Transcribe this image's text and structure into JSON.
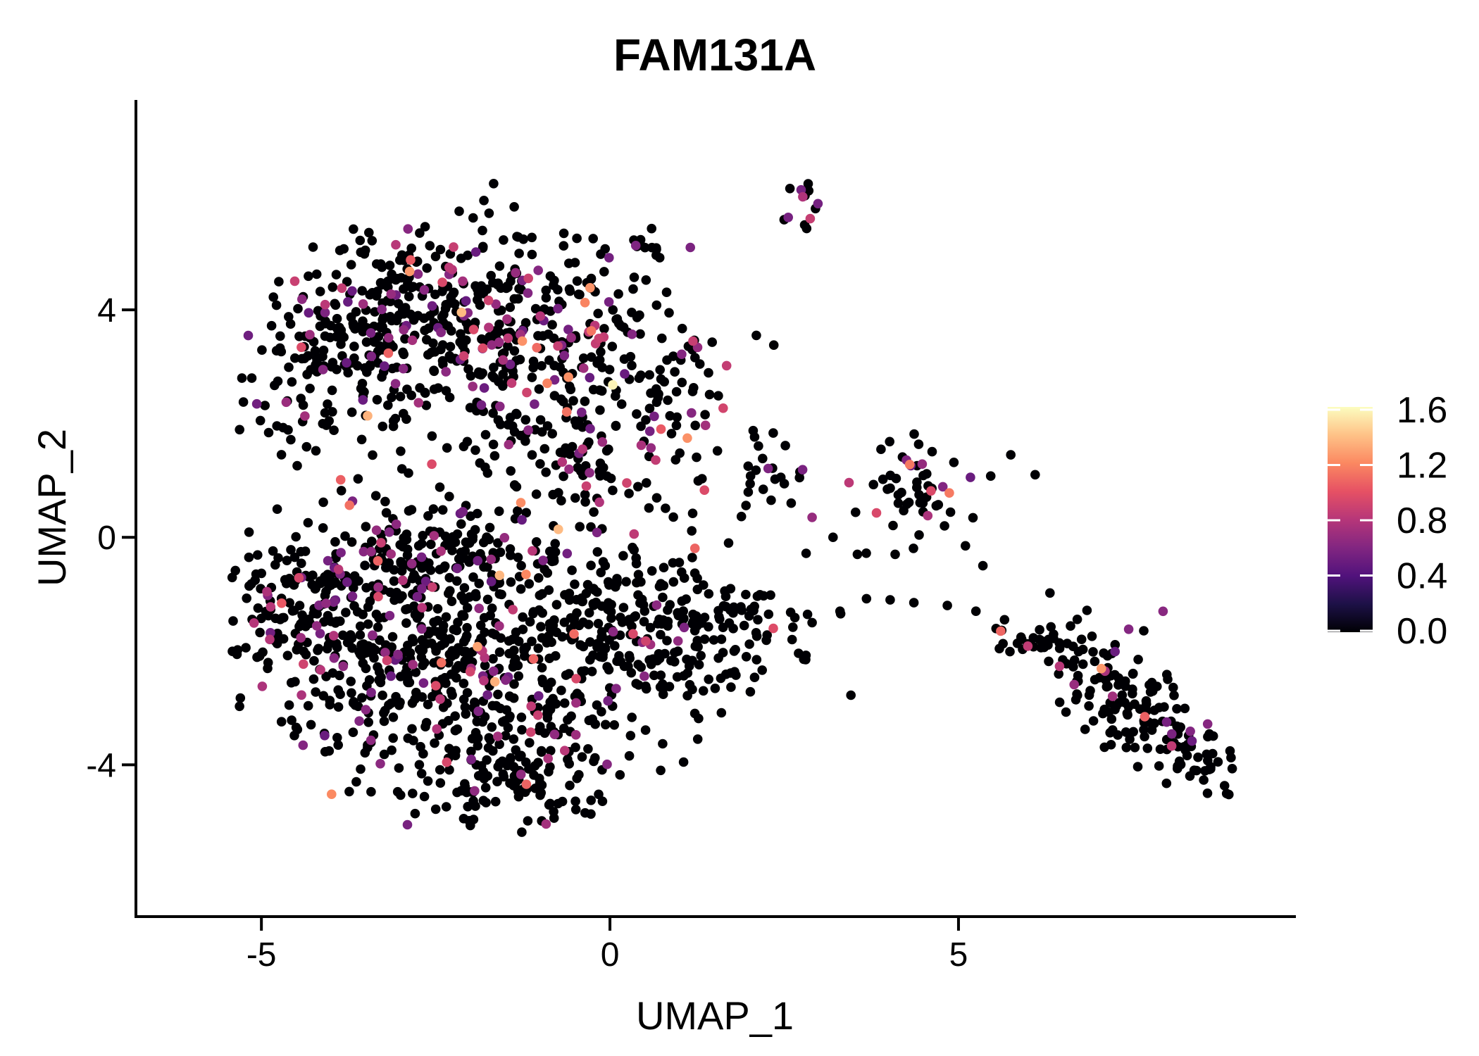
{
  "figure": {
    "title": "FAM131A",
    "x_axis": {
      "label": "UMAP_1",
      "ticks": [
        {
          "value": -5,
          "label": "-5"
        },
        {
          "value": 0,
          "label": "0"
        },
        {
          "value": 5,
          "label": "5"
        }
      ]
    },
    "y_axis": {
      "label": "UMAP_2",
      "ticks": [
        {
          "value": 4,
          "label": "4"
        },
        {
          "value": 0,
          "label": "0"
        },
        {
          "value": -4,
          "label": "-4"
        }
      ]
    },
    "legend": {
      "tick_labels": [
        "1.6",
        "1.2",
        "0.8",
        "0.4",
        "0.0"
      ],
      "tick_values": [
        1.6,
        1.2,
        0.8,
        0.4,
        0.0
      ],
      "scale_max": 1.6,
      "colormap": "magma"
    }
  },
  "chart_data": {
    "type": "scatter",
    "title": "FAM131A",
    "xlabel": "UMAP_1",
    "ylabel": "UMAP_2",
    "xlim": [
      -6.8,
      9.84
    ],
    "ylim": [
      -6.67,
      7.69
    ],
    "x_ticks": [
      -5,
      0,
      5
    ],
    "y_ticks": [
      -4,
      0,
      4
    ],
    "grid": false,
    "legend_position": "right",
    "point_radius_px": 6.8,
    "seed": 1337,
    "color_scale": {
      "min": 0.0,
      "max": 1.65,
      "palette": "magma",
      "stops": [
        {
          "t": 0.0,
          "c": "#000004"
        },
        {
          "t": 0.125,
          "c": "#1D1147"
        },
        {
          "t": 0.25,
          "c": "#51127C"
        },
        {
          "t": 0.375,
          "c": "#822681"
        },
        {
          "t": 0.5,
          "c": "#B63679"
        },
        {
          "t": 0.625,
          "c": "#E65164"
        },
        {
          "t": 0.75,
          "c": "#FB8861"
        },
        {
          "t": 0.875,
          "c": "#FEC287"
        },
        {
          "t": 1.0,
          "c": "#FCFDBF"
        }
      ]
    },
    "value_distribution": {
      "bins": [
        {
          "p": 0.55,
          "min": 0.5,
          "max": 0.75
        },
        {
          "p": 0.3,
          "min": 0.75,
          "max": 1.0
        },
        {
          "p": 0.115,
          "min": 1.05,
          "max": 1.3
        },
        {
          "p": 0.03,
          "min": 1.3,
          "max": 1.5
        },
        {
          "p": 0.005,
          "min": 1.55,
          "max": 1.65
        }
      ]
    },
    "clusters": [
      {
        "name": "top-small-cluster",
        "cx": 2.8,
        "cy": 5.9,
        "sx": 0.22,
        "sy": 0.3,
        "n": 13,
        "colored_frac": 0.28,
        "slope": 0
      },
      {
        "name": "upper-streak",
        "cx": 0.55,
        "cy": 5.25,
        "sx": 0.3,
        "sy": 0.13,
        "n": 13,
        "colored_frac": 0.15,
        "slope": 0.45
      },
      {
        "name": "neck-trail",
        "cx": -0.1,
        "cy": 4.6,
        "sx": 0.3,
        "sy": 0.35,
        "n": 7,
        "colored_frac": 0.3,
        "slope": 0
      },
      {
        "name": "upperleft-west",
        "cx": -3.7,
        "cy": 3.3,
        "sx": 0.8,
        "sy": 0.85,
        "n": 215,
        "colored_frac": 0.17,
        "slope": 0.3
      },
      {
        "name": "upperleft-north",
        "cx": -2.2,
        "cy": 4.05,
        "sx": 0.95,
        "sy": 0.72,
        "n": 260,
        "colored_frac": 0.16,
        "slope": 0
      },
      {
        "name": "upperleft-southeast",
        "cx": -0.75,
        "cy": 2.95,
        "sx": 0.75,
        "sy": 0.95,
        "n": 175,
        "colored_frac": 0.18,
        "slope": 0
      },
      {
        "name": "upperright-edge",
        "cx": 0.9,
        "cy": 2.8,
        "sx": 0.38,
        "sy": 0.62,
        "n": 45,
        "colored_frac": 0.12,
        "slope": 0
      },
      {
        "name": "mid-band",
        "cx": -0.35,
        "cy": 1.25,
        "sx": 1.05,
        "sy": 0.78,
        "n": 115,
        "colored_frac": 0.17,
        "slope": 0
      },
      {
        "name": "mass-west",
        "cx": -3.85,
        "cy": -1.5,
        "sx": 0.95,
        "sy": 1.05,
        "n": 340,
        "colored_frac": 0.15,
        "slope": 0
      },
      {
        "name": "mass-center-south",
        "cx": -1.95,
        "cy": -2.75,
        "sx": 1.05,
        "sy": 0.98,
        "n": 330,
        "colored_frac": 0.09,
        "slope": 0
      },
      {
        "name": "mass-east",
        "cx": 0.4,
        "cy": -1.7,
        "sx": 1.05,
        "sy": 0.8,
        "n": 270,
        "colored_frac": 0.05,
        "slope": 0
      },
      {
        "name": "mass-east-tip",
        "cx": 1.9,
        "cy": -1.45,
        "sx": 0.5,
        "sy": 0.35,
        "n": 40,
        "colored_frac": 0.05,
        "slope": -0.3
      },
      {
        "name": "mass-north-band",
        "cx": -2.35,
        "cy": -0.35,
        "sx": 1.0,
        "sy": 0.45,
        "n": 150,
        "colored_frac": 0.12,
        "slope": 0
      },
      {
        "name": "mass-south-tip",
        "cx": -1.3,
        "cy": -4.25,
        "sx": 0.72,
        "sy": 0.45,
        "n": 95,
        "colored_frac": 0.08,
        "slope": 0
      },
      {
        "name": "midright-small-cluster",
        "cx": 2.3,
        "cy": 1.25,
        "sx": 0.3,
        "sy": 0.32,
        "n": 20,
        "colored_frac": 0.2,
        "slope": 0
      },
      {
        "name": "right-cluster",
        "cx": 4.35,
        "cy": 0.72,
        "sx": 0.42,
        "sy": 0.45,
        "n": 52,
        "colored_frac": 0.08,
        "slope": 0
      },
      {
        "name": "farright-streak",
        "cx": 6.05,
        "cy": -1.85,
        "sx": 0.33,
        "sy": 0.12,
        "n": 22,
        "colored_frac": 0.08,
        "slope": -0.25
      },
      {
        "name": "farright-main",
        "cx": 7.0,
        "cy": -2.4,
        "sx": 0.45,
        "sy": 0.52,
        "n": 85,
        "colored_frac": 0.1,
        "slope": -0.35
      },
      {
        "name": "farright-mid",
        "cx": 7.62,
        "cy": -3.15,
        "sx": 0.3,
        "sy": 0.3,
        "n": 30,
        "colored_frac": 0.1,
        "slope": -0.3
      },
      {
        "name": "farright-tail",
        "cx": 8.2,
        "cy": -3.75,
        "sx": 0.42,
        "sy": 0.3,
        "n": 58,
        "colored_frac": 0.12,
        "slope": -0.45
      }
    ],
    "extra_points": [
      {
        "x": 0.04,
        "y": 2.68,
        "v": 1.62
      },
      {
        "x": -0.74,
        "y": 0.14,
        "v": 1.42
      },
      {
        "x": -1.65,
        "y": -2.54,
        "v": 1.38
      },
      {
        "x": 2.1,
        "y": 3.55,
        "v": 0
      },
      {
        "x": 2.35,
        "y": 3.38,
        "v": 0
      },
      {
        "x": 4.3,
        "y": 1.28,
        "v": 1.18
      },
      {
        "x": 3.43,
        "y": 0.96,
        "v": 0.85
      },
      {
        "x": 2.9,
        "y": -1.5,
        "v": 0
      },
      {
        "x": 3.3,
        "y": -1.3,
        "v": 0
      },
      {
        "x": 3.68,
        "y": -1.08,
        "v": 0
      },
      {
        "x": 4.02,
        "y": -1.1,
        "v": 0
      },
      {
        "x": 4.36,
        "y": -1.15,
        "v": 0
      },
      {
        "x": 4.84,
        "y": -1.2,
        "v": 0
      },
      {
        "x": 5.25,
        "y": -1.3,
        "v": 0
      },
      {
        "x": 5.66,
        "y": -1.45,
        "v": 0
      },
      {
        "x": 4.8,
        "y": 0.2,
        "v": 0
      },
      {
        "x": 5.1,
        "y": -0.15,
        "v": 0
      },
      {
        "x": 5.35,
        "y": -0.5,
        "v": 0
      },
      {
        "x": 2.6,
        "y": 0.6,
        "v": 0
      },
      {
        "x": 2.9,
        "y": 0.35,
        "v": 0.7
      },
      {
        "x": 3.2,
        "y": 0.0,
        "v": 0
      },
      {
        "x": 3.55,
        "y": -0.3,
        "v": 0
      },
      {
        "x": 5.75,
        "y": 1.45,
        "v": 0
      },
      {
        "x": 6.1,
        "y": 1.1,
        "v": 0
      }
    ]
  }
}
